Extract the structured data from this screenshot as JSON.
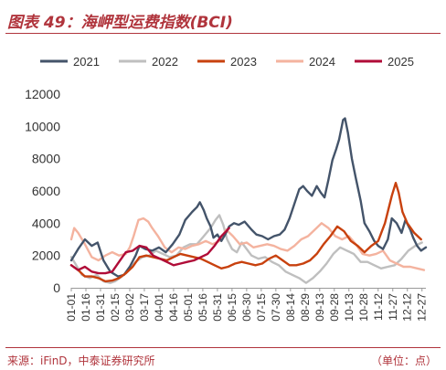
{
  "header": {
    "title": "图表 49：海岬型运费指数(BCI)"
  },
  "footer": {
    "source": "来源：iFinD，中泰证券研究所",
    "unit": "（单位：点）"
  },
  "chart_data": {
    "type": "line",
    "title": "图表 49：海岬型运费指数(BCI)",
    "xlabel": "",
    "ylabel": "",
    "ylim": [
      0,
      12000
    ],
    "yticks": [
      0,
      2000,
      4000,
      6000,
      8000,
      10000,
      12000
    ],
    "x_range": [
      "01-01",
      "12-31"
    ],
    "x_tick_labels": [
      "01-01",
      "01-16",
      "01-31",
      "02-15",
      "03-02",
      "03-17",
      "04-01",
      "04-16",
      "05-01",
      "05-16",
      "05-31",
      "06-15",
      "06-30",
      "07-15",
      "07-30",
      "08-14",
      "08-29",
      "09-13",
      "09-28",
      "10-13",
      "10-28",
      "11-12",
      "11-27",
      "12-12",
      "12-27"
    ],
    "legend_position": "top",
    "grid": false,
    "series": [
      {
        "name": "2021",
        "color": "#44546a",
        "points": [
          [
            "01-01",
            1700
          ],
          [
            "01-08",
            2400
          ],
          [
            "01-15",
            3000
          ],
          [
            "01-22",
            2600
          ],
          [
            "01-28",
            2800
          ],
          [
            "02-03",
            1700
          ],
          [
            "02-10",
            1000
          ],
          [
            "02-18",
            700
          ],
          [
            "02-24",
            800
          ],
          [
            "03-02",
            1300
          ],
          [
            "03-08",
            2000
          ],
          [
            "03-12",
            2600
          ],
          [
            "03-18",
            2400
          ],
          [
            "03-25",
            2300
          ],
          [
            "04-01",
            2500
          ],
          [
            "04-08",
            2200
          ],
          [
            "04-15",
            2700
          ],
          [
            "04-22",
            3300
          ],
          [
            "04-28",
            4200
          ],
          [
            "05-05",
            4700
          ],
          [
            "05-10",
            5000
          ],
          [
            "05-13",
            5300
          ],
          [
            "05-17",
            4800
          ],
          [
            "05-20",
            4300
          ],
          [
            "05-24",
            3800
          ],
          [
            "05-27",
            3100
          ],
          [
            "05-31",
            3300
          ],
          [
            "06-04",
            2900
          ],
          [
            "06-08",
            3300
          ],
          [
            "06-12",
            3800
          ],
          [
            "06-17",
            4000
          ],
          [
            "06-22",
            3900
          ],
          [
            "06-28",
            4100
          ],
          [
            "07-05",
            3600
          ],
          [
            "07-10",
            3300
          ],
          [
            "07-16",
            3200
          ],
          [
            "07-22",
            3000
          ],
          [
            "07-28",
            3200
          ],
          [
            "08-03",
            3300
          ],
          [
            "08-08",
            3600
          ],
          [
            "08-13",
            4300
          ],
          [
            "08-18",
            5200
          ],
          [
            "08-23",
            6100
          ],
          [
            "08-27",
            6300
          ],
          [
            "08-31",
            6000
          ],
          [
            "09-05",
            5700
          ],
          [
            "09-10",
            6300
          ],
          [
            "09-14",
            5900
          ],
          [
            "09-18",
            5600
          ],
          [
            "09-22",
            6700
          ],
          [
            "09-26",
            7900
          ],
          [
            "09-30",
            8600
          ],
          [
            "10-03",
            9200
          ],
          [
            "10-07",
            10400
          ],
          [
            "10-09",
            10500
          ],
          [
            "10-12",
            9600
          ],
          [
            "10-16",
            8000
          ],
          [
            "10-20",
            6800
          ],
          [
            "10-25",
            5400
          ],
          [
            "10-29",
            4000
          ],
          [
            "11-03",
            3500
          ],
          [
            "11-08",
            2900
          ],
          [
            "11-12",
            2600
          ],
          [
            "11-17",
            2400
          ],
          [
            "11-22",
            3000
          ],
          [
            "11-26",
            4300
          ],
          [
            "12-01",
            4000
          ],
          [
            "12-06",
            3400
          ],
          [
            "12-10",
            4200
          ],
          [
            "12-15",
            3600
          ],
          [
            "12-18",
            3100
          ],
          [
            "12-22",
            2600
          ],
          [
            "12-26",
            2300
          ],
          [
            "12-31",
            2500
          ]
        ]
      },
      {
        "name": "2022",
        "color": "#bfbfbf",
        "points": [
          [
            "01-01",
            1900
          ],
          [
            "01-05",
            1500
          ],
          [
            "01-12",
            800
          ],
          [
            "01-20",
            600
          ],
          [
            "01-27",
            800
          ],
          [
            "02-03",
            400
          ],
          [
            "02-10",
            300
          ],
          [
            "02-15",
            400
          ],
          [
            "02-22",
            700
          ],
          [
            "03-01",
            1100
          ],
          [
            "03-08",
            1600
          ],
          [
            "03-15",
            1900
          ],
          [
            "03-22",
            2000
          ],
          [
            "03-29",
            2300
          ],
          [
            "04-05",
            2100
          ],
          [
            "04-12",
            1900
          ],
          [
            "04-19",
            2000
          ],
          [
            "04-26",
            2500
          ],
          [
            "05-03",
            2700
          ],
          [
            "05-10",
            2700
          ],
          [
            "05-17",
            3200
          ],
          [
            "05-24",
            3700
          ],
          [
            "05-29",
            4200
          ],
          [
            "06-02",
            4500
          ],
          [
            "06-06",
            3900
          ],
          [
            "06-10",
            3000
          ],
          [
            "06-15",
            2400
          ],
          [
            "06-20",
            2200
          ],
          [
            "06-25",
            2800
          ],
          [
            "06-30",
            2400
          ],
          [
            "07-05",
            2000
          ],
          [
            "07-12",
            1800
          ],
          [
            "07-19",
            1900
          ],
          [
            "07-26",
            1600
          ],
          [
            "08-02",
            1400
          ],
          [
            "08-09",
            1000
          ],
          [
            "08-16",
            800
          ],
          [
            "08-23",
            600
          ],
          [
            "08-30",
            300
          ],
          [
            "09-06",
            600
          ],
          [
            "09-13",
            1000
          ],
          [
            "09-20",
            1500
          ],
          [
            "09-27",
            2100
          ],
          [
            "10-04",
            2500
          ],
          [
            "10-11",
            2300
          ],
          [
            "10-18",
            2100
          ],
          [
            "10-25",
            1600
          ],
          [
            "11-01",
            1600
          ],
          [
            "11-08",
            1400
          ],
          [
            "11-15",
            1200
          ],
          [
            "11-22",
            1300
          ],
          [
            "11-29",
            1400
          ],
          [
            "12-06",
            1800
          ],
          [
            "12-13",
            2300
          ],
          [
            "12-20",
            2600
          ],
          [
            "12-27",
            2800
          ]
        ]
      },
      {
        "name": "2023",
        "color": "#c8410e",
        "points": [
          [
            "01-01",
            1400
          ],
          [
            "01-08",
            1100
          ],
          [
            "01-15",
            700
          ],
          [
            "01-22",
            700
          ],
          [
            "01-29",
            600
          ],
          [
            "02-05",
            400
          ],
          [
            "02-12",
            450
          ],
          [
            "02-19",
            600
          ],
          [
            "02-26",
            900
          ],
          [
            "03-05",
            1300
          ],
          [
            "03-12",
            1900
          ],
          [
            "03-19",
            2000
          ],
          [
            "03-26",
            1900
          ],
          [
            "04-02",
            1800
          ],
          [
            "04-09",
            1700
          ],
          [
            "04-16",
            1900
          ],
          [
            "04-23",
            2100
          ],
          [
            "04-30",
            2000
          ],
          [
            "05-07",
            1900
          ],
          [
            "05-14",
            1800
          ],
          [
            "05-21",
            1600
          ],
          [
            "05-28",
            1400
          ],
          [
            "06-04",
            1200
          ],
          [
            "06-11",
            1300
          ],
          [
            "06-18",
            1500
          ],
          [
            "06-25",
            1600
          ],
          [
            "07-02",
            1500
          ],
          [
            "07-09",
            1400
          ],
          [
            "07-16",
            1500
          ],
          [
            "07-23",
            1800
          ],
          [
            "07-30",
            2000
          ],
          [
            "08-06",
            1700
          ],
          [
            "08-13",
            1400
          ],
          [
            "08-20",
            1400
          ],
          [
            "08-27",
            1500
          ],
          [
            "09-03",
            1700
          ],
          [
            "09-10",
            2100
          ],
          [
            "09-17",
            2700
          ],
          [
            "09-24",
            3200
          ],
          [
            "10-01",
            3800
          ],
          [
            "10-08",
            3500
          ],
          [
            "10-15",
            2900
          ],
          [
            "10-22",
            2600
          ],
          [
            "10-29",
            2200
          ],
          [
            "11-05",
            2600
          ],
          [
            "11-12",
            2900
          ],
          [
            "11-19",
            4000
          ],
          [
            "11-26",
            5700
          ],
          [
            "11-30",
            6500
          ],
          [
            "12-03",
            5900
          ],
          [
            "12-07",
            4700
          ],
          [
            "12-12",
            4000
          ],
          [
            "12-19",
            3400
          ],
          [
            "12-26",
            3000
          ]
        ]
      },
      {
        "name": "2024",
        "color": "#f4b39f",
        "points": [
          [
            "01-01",
            3000
          ],
          [
            "01-04",
            3700
          ],
          [
            "01-08",
            3400
          ],
          [
            "01-15",
            2700
          ],
          [
            "01-22",
            1900
          ],
          [
            "01-29",
            1700
          ],
          [
            "02-05",
            2000
          ],
          [
            "02-12",
            2200
          ],
          [
            "02-19",
            2000
          ],
          [
            "02-26",
            2100
          ],
          [
            "03-02",
            2500
          ],
          [
            "03-06",
            3200
          ],
          [
            "03-11",
            4200
          ],
          [
            "03-16",
            4300
          ],
          [
            "03-21",
            4100
          ],
          [
            "03-25",
            3700
          ],
          [
            "03-31",
            3200
          ],
          [
            "04-07",
            2500
          ],
          [
            "04-14",
            2200
          ],
          [
            "04-21",
            2500
          ],
          [
            "04-28",
            2400
          ],
          [
            "05-05",
            2600
          ],
          [
            "05-12",
            2700
          ],
          [
            "05-19",
            2900
          ],
          [
            "05-26",
            2700
          ],
          [
            "06-02",
            2900
          ],
          [
            "06-09",
            3600
          ],
          [
            "06-16",
            3200
          ],
          [
            "06-23",
            2700
          ],
          [
            "06-30",
            2800
          ],
          [
            "07-07",
            2500
          ],
          [
            "07-14",
            2600
          ],
          [
            "07-21",
            2700
          ],
          [
            "07-28",
            2600
          ],
          [
            "08-04",
            2400
          ],
          [
            "08-11",
            2300
          ],
          [
            "08-18",
            2600
          ],
          [
            "08-25",
            3000
          ],
          [
            "09-01",
            3200
          ],
          [
            "09-08",
            3600
          ],
          [
            "09-15",
            4000
          ],
          [
            "09-22",
            3700
          ],
          [
            "09-29",
            3200
          ],
          [
            "10-06",
            3000
          ],
          [
            "10-13",
            3200
          ],
          [
            "10-20",
            2700
          ],
          [
            "10-27",
            2100
          ],
          [
            "11-03",
            2000
          ],
          [
            "11-10",
            2100
          ],
          [
            "11-17",
            2300
          ],
          [
            "11-24",
            1700
          ],
          [
            "12-01",
            1500
          ],
          [
            "12-08",
            1300
          ],
          [
            "12-15",
            1300
          ],
          [
            "12-22",
            1200
          ],
          [
            "12-29",
            1100
          ]
        ]
      },
      {
        "name": "2025",
        "color": "#b00c38",
        "points": [
          [
            "01-01",
            1400
          ],
          [
            "01-08",
            1100
          ],
          [
            "01-15",
            1300
          ],
          [
            "01-22",
            1000
          ],
          [
            "01-29",
            900
          ],
          [
            "02-05",
            900
          ],
          [
            "02-12",
            1000
          ],
          [
            "02-19",
            1600
          ],
          [
            "02-26",
            2200
          ],
          [
            "03-05",
            2300
          ],
          [
            "03-12",
            2600
          ],
          [
            "03-19",
            2500
          ],
          [
            "03-26",
            2000
          ],
          [
            "04-02",
            1800
          ],
          [
            "04-09",
            1600
          ],
          [
            "04-16",
            1400
          ],
          [
            "04-23",
            1500
          ],
          [
            "04-30",
            1600
          ],
          [
            "05-07",
            1700
          ],
          [
            "05-14",
            1900
          ],
          [
            "05-21",
            2100
          ],
          [
            "05-28",
            2600
          ],
          [
            "06-04",
            3200
          ],
          [
            "06-09",
            3500
          ],
          [
            "06-12",
            3700
          ]
        ]
      }
    ]
  }
}
